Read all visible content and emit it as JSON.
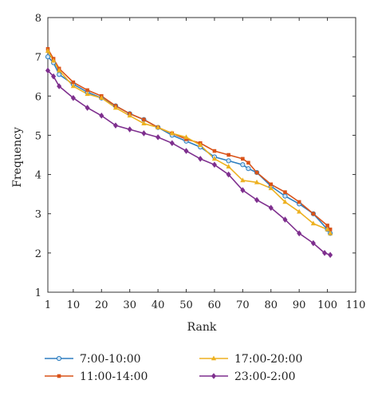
{
  "chart_data": {
    "type": "line",
    "title": "",
    "xlabel": "Rank",
    "ylabel": "Frequency",
    "xlim": [
      1,
      110
    ],
    "ylim": [
      1,
      8
    ],
    "xticks": [
      1,
      10,
      20,
      30,
      40,
      50,
      60,
      70,
      80,
      90,
      100,
      110
    ],
    "yticks": [
      1,
      2,
      3,
      4,
      5,
      6,
      7,
      8
    ],
    "grid": false,
    "legend_position": "bottom",
    "series": [
      {
        "name": "7:00-10:00",
        "color": "#2e7fc0",
        "marker": "circle",
        "x": [
          1,
          3,
          5,
          10,
          15,
          20,
          25,
          30,
          35,
          40,
          45,
          50,
          55,
          60,
          65,
          70,
          72,
          75,
          80,
          85,
          90,
          95,
          100,
          101
        ],
        "y": [
          7.0,
          6.85,
          6.55,
          6.3,
          6.1,
          5.95,
          5.75,
          5.55,
          5.4,
          5.2,
          5.0,
          4.85,
          4.7,
          4.45,
          4.35,
          4.25,
          4.15,
          4.05,
          3.7,
          3.45,
          3.25,
          3.0,
          2.6,
          2.5
        ]
      },
      {
        "name": "11:00-14:00",
        "color": "#d95319",
        "marker": "square",
        "x": [
          1,
          3,
          5,
          10,
          15,
          20,
          25,
          30,
          35,
          40,
          45,
          50,
          55,
          60,
          65,
          70,
          72,
          75,
          80,
          85,
          90,
          95,
          100,
          101
        ],
        "y": [
          7.2,
          6.95,
          6.7,
          6.35,
          6.15,
          6.0,
          5.75,
          5.55,
          5.4,
          5.2,
          5.05,
          4.9,
          4.8,
          4.6,
          4.5,
          4.4,
          4.3,
          4.05,
          3.75,
          3.55,
          3.3,
          3.0,
          2.7,
          2.6
        ]
      },
      {
        "name": "17:00-20:00",
        "color": "#edb120",
        "marker": "triangle",
        "x": [
          1,
          3,
          5,
          10,
          15,
          20,
          25,
          30,
          35,
          40,
          45,
          50,
          55,
          60,
          65,
          70,
          75,
          80,
          85,
          90,
          95,
          100,
          101
        ],
        "y": [
          7.15,
          6.9,
          6.65,
          6.25,
          6.05,
          5.95,
          5.7,
          5.5,
          5.3,
          5.2,
          5.05,
          4.95,
          4.75,
          4.4,
          4.2,
          3.85,
          3.8,
          3.65,
          3.3,
          3.05,
          2.75,
          2.6,
          2.5
        ]
      },
      {
        "name": "23:00-2:00",
        "color": "#7e2f8e",
        "marker": "diamond",
        "x": [
          1,
          3,
          5,
          10,
          15,
          20,
          25,
          30,
          35,
          40,
          45,
          50,
          55,
          60,
          65,
          70,
          75,
          80,
          85,
          90,
          95,
          99,
          101
        ],
        "y": [
          6.65,
          6.5,
          6.25,
          5.95,
          5.7,
          5.5,
          5.25,
          5.15,
          5.05,
          4.95,
          4.8,
          4.6,
          4.4,
          4.25,
          4.0,
          3.6,
          3.35,
          3.15,
          2.85,
          2.5,
          2.25,
          2.0,
          1.95
        ]
      }
    ]
  }
}
